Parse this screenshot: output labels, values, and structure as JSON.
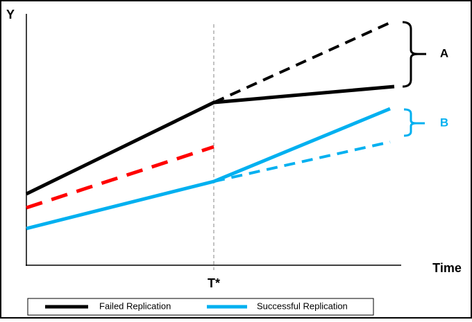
{
  "axes": {
    "y_label": "Y",
    "x_label": "Time",
    "marker_label": "T*"
  },
  "brackets": [
    {
      "label": "A"
    },
    {
      "label": "B"
    }
  ],
  "legend": [
    {
      "label": "Failed Replication"
    },
    {
      "label": "Successful Replication"
    }
  ]
}
